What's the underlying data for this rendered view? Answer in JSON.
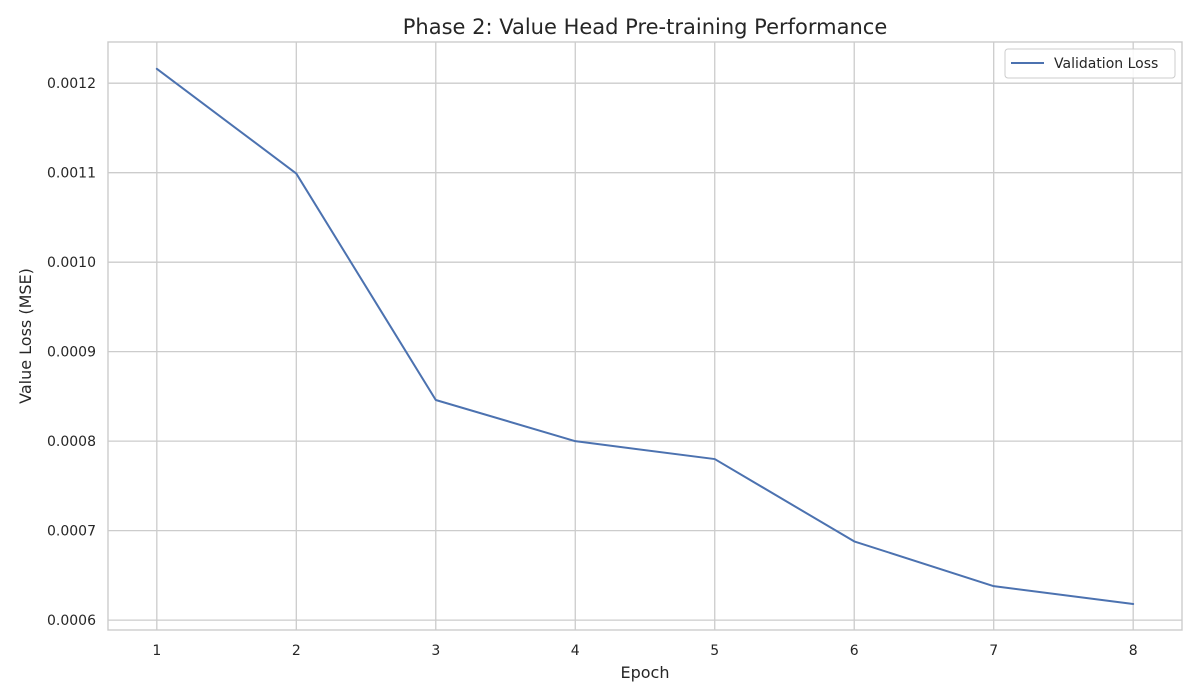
{
  "chart_data": {
    "type": "line",
    "title": "Phase 2: Value Head Pre-training Performance",
    "xlabel": "Epoch",
    "ylabel": "Value Loss (MSE)",
    "x": [
      1,
      2,
      3,
      4,
      5,
      6,
      7,
      8
    ],
    "x_ticks": [
      "1",
      "2",
      "3",
      "4",
      "5",
      "6",
      "7",
      "8"
    ],
    "y_ticks": [
      "0.0006",
      "0.0007",
      "0.0008",
      "0.0009",
      "0.0010",
      "0.0011",
      "0.0012"
    ],
    "y_tick_values": [
      0.0006,
      0.0007,
      0.0008,
      0.0009,
      0.001,
      0.0011,
      0.0012
    ],
    "xlim": [
      0.65,
      8.35
    ],
    "ylim": [
      0.000589,
      0.001246
    ],
    "grid": true,
    "legend_position": "top-right",
    "series": [
      {
        "name": "Validation Loss",
        "color": "#4c72b0",
        "values": [
          0.001216,
          0.001099,
          0.000846,
          0.0008,
          0.00078,
          0.000688,
          0.000638,
          0.000618
        ]
      }
    ]
  }
}
